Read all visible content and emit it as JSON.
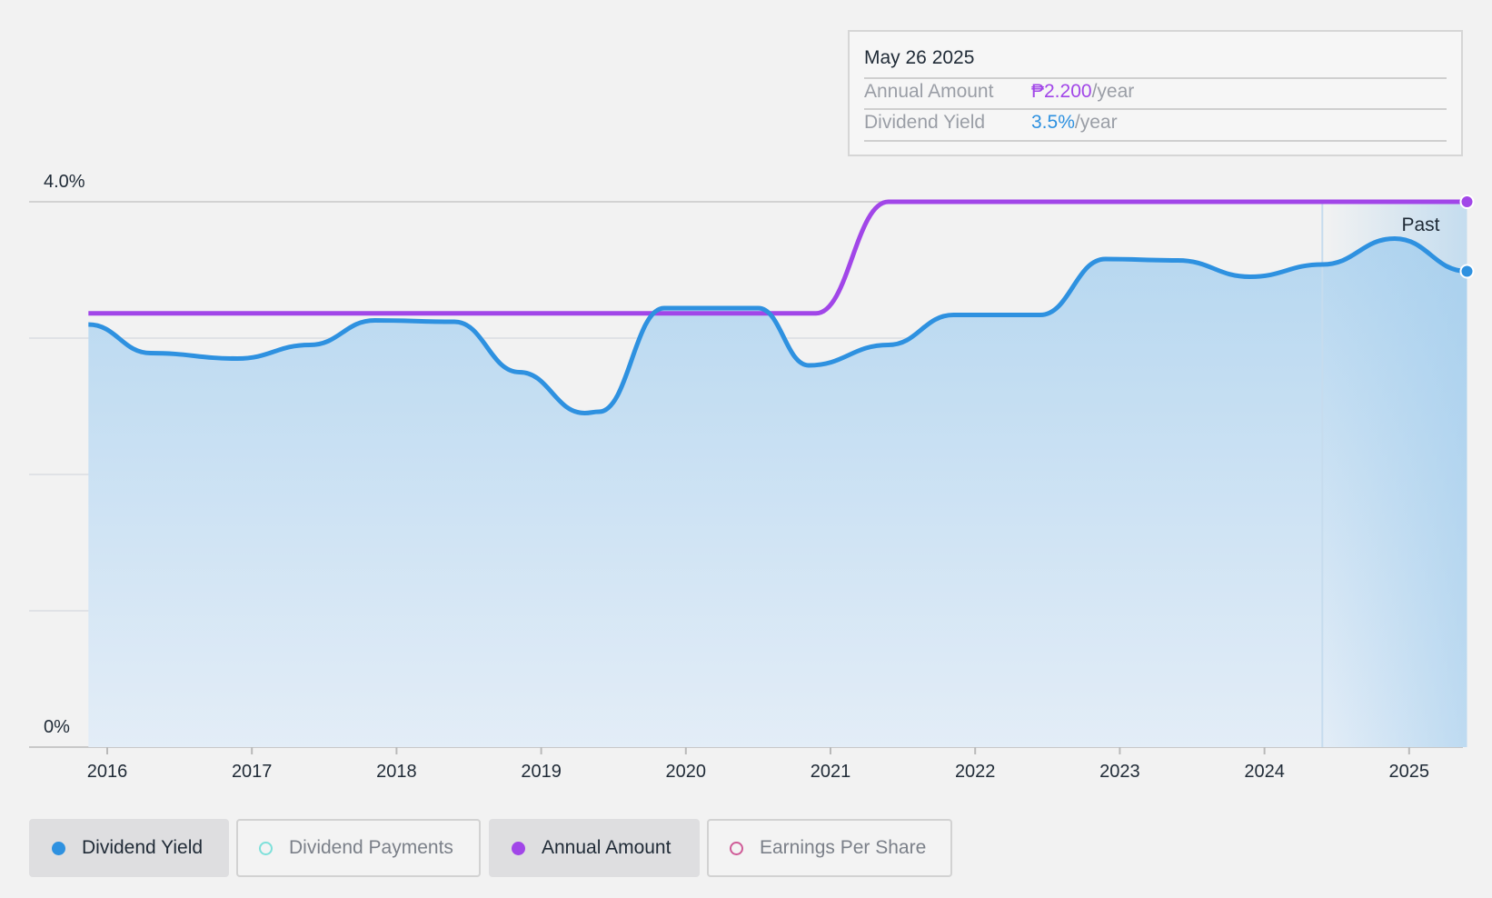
{
  "tooltip": {
    "date": "May 26 2025",
    "annual_label": "Annual Amount",
    "annual_value": "₱2.200",
    "annual_unit": "/year",
    "yield_label": "Dividend Yield",
    "yield_value": "3.5%",
    "yield_unit": "/year"
  },
  "legend": [
    {
      "label": "Dividend Yield",
      "color": "#2e91e0",
      "active": true,
      "filled": true
    },
    {
      "label": "Dividend Payments",
      "color": "#7ee0da",
      "active": false,
      "filled": false
    },
    {
      "label": "Annual Amount",
      "color": "#a146e8",
      "active": true,
      "filled": true
    },
    {
      "label": "Earnings Per Share",
      "color": "#cf5b97",
      "active": false,
      "filled": false
    }
  ],
  "colors": {
    "yield": "#2e91e0",
    "annual": "#a146e8",
    "area_top": "#b6d7f0",
    "area_bottom": "#e3edf7"
  },
  "chart_data": {
    "type": "line",
    "ylim": [
      0,
      4.0
    ],
    "y_tick_labels": [
      "0%",
      "4.0%"
    ],
    "x_tick_labels": [
      "2016",
      "2017",
      "2018",
      "2019",
      "2020",
      "2021",
      "2022",
      "2023",
      "2024",
      "2025"
    ],
    "past_label": "Past",
    "series": [
      {
        "name": "Dividend Yield",
        "unit": "%",
        "points": [
          [
            2015.87,
            3.1
          ],
          [
            2016.3,
            2.89
          ],
          [
            2016.9,
            2.85
          ],
          [
            2017.4,
            2.95
          ],
          [
            2017.85,
            3.13
          ],
          [
            2018.4,
            3.12
          ],
          [
            2018.85,
            2.75
          ],
          [
            2019.3,
            2.45
          ],
          [
            2019.4,
            2.46
          ],
          [
            2019.85,
            3.22
          ],
          [
            2020.5,
            3.22
          ],
          [
            2020.85,
            2.8
          ],
          [
            2021.4,
            2.95
          ],
          [
            2021.85,
            3.17
          ],
          [
            2022.45,
            3.17
          ],
          [
            2022.9,
            3.58
          ],
          [
            2023.4,
            3.57
          ],
          [
            2023.9,
            3.45
          ],
          [
            2024.4,
            3.54
          ],
          [
            2024.9,
            3.73
          ],
          [
            2025.4,
            3.49
          ]
        ]
      },
      {
        "name": "Annual Amount",
        "unit": "₱/year",
        "points": [
          [
            2015.87,
            1.75
          ],
          [
            2020.9,
            1.75
          ],
          [
            2021.4,
            2.2
          ],
          [
            2025.4,
            2.2
          ]
        ]
      }
    ]
  }
}
